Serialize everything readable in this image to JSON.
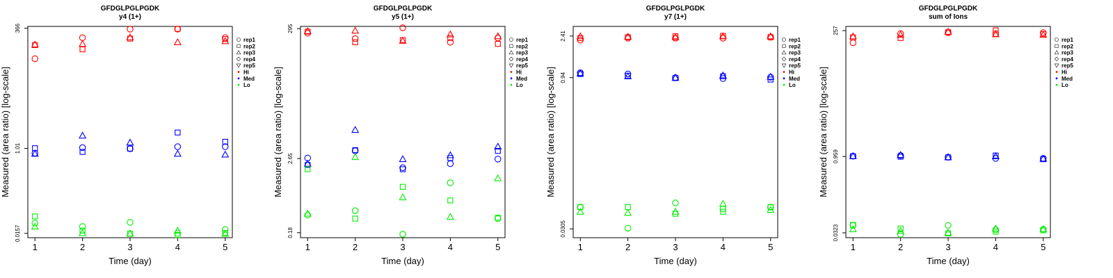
{
  "legend": {
    "reps": [
      {
        "label": "rep1",
        "marker": "circle"
      },
      {
        "label": "rep2",
        "marker": "square"
      },
      {
        "label": "rep3",
        "marker": "triangle-up"
      },
      {
        "label": "rep4",
        "marker": "diamond"
      },
      {
        "label": "rep5",
        "marker": "triangle-down"
      }
    ],
    "levels": [
      {
        "label": "Hi",
        "color": "#ff0000"
      },
      {
        "label": "Med",
        "color": "#0000ff"
      },
      {
        "label": "Lo",
        "color": "#00ee00"
      }
    ]
  },
  "chart_data": [
    {
      "type": "scatter",
      "title": "GFDGLPGLPGDK",
      "subtitle": "y4 (1+)",
      "xlabel": "Time (day)",
      "ylabel": "Measured (area ratio) [log-scale]",
      "x_ticks": [
        "1",
        "2",
        "3",
        "4",
        "5"
      ],
      "y_scale": "log",
      "y_ticks": [
        "0.0157",
        "1.01",
        "366"
      ],
      "ylim": [
        0.0127,
        400
      ],
      "series": [
        {
          "level": "Hi",
          "rep": "rep1",
          "values": [
            [
              1,
              82
            ],
            [
              2,
              230
            ],
            [
              3,
              350
            ],
            [
              4,
              350
            ],
            [
              5,
              230
            ]
          ]
        },
        {
          "level": "Hi",
          "rep": "rep2",
          "values": [
            [
              1,
              160
            ],
            [
              2,
              130
            ],
            [
              3,
              220
            ],
            [
              4,
              355
            ],
            [
              5,
              215
            ]
          ]
        },
        {
          "level": "Hi",
          "rep": "rep3",
          "values": [
            [
              1,
              165
            ],
            [
              2,
              170
            ],
            [
              3,
              235
            ],
            [
              4,
              185
            ],
            [
              5,
              195
            ]
          ]
        },
        {
          "level": "Med",
          "rep": "rep1",
          "values": [
            [
              1,
              0.8
            ],
            [
              2,
              1.05
            ],
            [
              3,
              1.0
            ],
            [
              4,
              1.1
            ],
            [
              5,
              1.1
            ]
          ]
        },
        {
          "level": "Med",
          "rep": "rep2",
          "values": [
            [
              1,
              1.02
            ],
            [
              2,
              0.85
            ],
            [
              3,
              1.0
            ],
            [
              4,
              2.2
            ],
            [
              5,
              1.4
            ]
          ]
        },
        {
          "level": "Med",
          "rep": "rep3",
          "values": [
            [
              1,
              0.78
            ],
            [
              2,
              1.9
            ],
            [
              3,
              1.35
            ],
            [
              4,
              0.78
            ],
            [
              5,
              0.75
            ]
          ]
        },
        {
          "level": "Lo",
          "rep": "rep1",
          "values": [
            [
              1,
              0.026
            ],
            [
              2,
              0.022
            ],
            [
              3,
              0.027
            ],
            [
              4,
              0.0157
            ],
            [
              5,
              0.019
            ]
          ]
        },
        {
          "level": "Lo",
          "rep": "rep2",
          "values": [
            [
              1,
              0.036
            ],
            [
              2,
              0.018
            ],
            [
              3,
              0.0155
            ],
            [
              4,
              0.0145
            ],
            [
              5,
              0.016
            ]
          ]
        },
        {
          "level": "Lo",
          "rep": "rep3",
          "values": [
            [
              1,
              0.022
            ],
            [
              2,
              0.016
            ],
            [
              3,
              0.0155
            ],
            [
              4,
              0.018
            ],
            [
              5,
              0.0155
            ]
          ]
        }
      ]
    },
    {
      "type": "scatter",
      "title": "GFDGLPGLPGDK",
      "subtitle": "y5 (1+)",
      "xlabel": "Time (day)",
      "ylabel": "Measured (area ratio) [log-scale]",
      "x_ticks": [
        "1",
        "2",
        "3",
        "4",
        "5"
      ],
      "y_scale": "log",
      "y_ticks": [
        "0.18",
        "2.65",
        "295"
      ],
      "ylim": [
        0.15,
        320
      ],
      "series": [
        {
          "level": "Hi",
          "rep": "rep1",
          "values": [
            [
              1,
              250
            ],
            [
              2,
              205
            ],
            [
              3,
              305
            ],
            [
              4,
              180
            ],
            [
              5,
              210
            ]
          ]
        },
        {
          "level": "Hi",
          "rep": "rep2",
          "values": [
            [
              1,
              265
            ],
            [
              2,
              180
            ],
            [
              3,
              195
            ],
            [
              4,
              210
            ],
            [
              5,
              170
            ]
          ]
        },
        {
          "level": "Hi",
          "rep": "rep3",
          "values": [
            [
              1,
              270
            ],
            [
              2,
              275
            ],
            [
              3,
              190
            ],
            [
              4,
              240
            ],
            [
              5,
              225
            ]
          ]
        },
        {
          "level": "Med",
          "rep": "rep1",
          "values": [
            [
              1,
              2.7
            ],
            [
              2,
              3.5
            ],
            [
              3,
              1.9
            ],
            [
              4,
              2.2
            ],
            [
              5,
              2.6
            ]
          ]
        },
        {
          "level": "Med",
          "rep": "rep2",
          "values": [
            [
              1,
              2.1
            ],
            [
              2,
              3.6
            ],
            [
              3,
              1.8
            ],
            [
              4,
              2.7
            ],
            [
              5,
              3.5
            ]
          ]
        },
        {
          "level": "Med",
          "rep": "rep3",
          "values": [
            [
              1,
              2.2
            ],
            [
              2,
              7.5
            ],
            [
              3,
              2.6
            ],
            [
              4,
              3.0
            ],
            [
              5,
              4.1
            ]
          ]
        },
        {
          "level": "Lo",
          "rep": "rep1",
          "values": [
            [
              1,
              0.34
            ],
            [
              2,
              0.4
            ],
            [
              3,
              0.17
            ],
            [
              4,
              1.1
            ],
            [
              5,
              0.3
            ]
          ]
        },
        {
          "level": "Lo",
          "rep": "rep2",
          "values": [
            [
              1,
              1.8
            ],
            [
              2,
              0.3
            ],
            [
              3,
              0.95
            ],
            [
              4,
              0.58
            ],
            [
              5,
              0.31
            ]
          ]
        },
        {
          "level": "Lo",
          "rep": "rep3",
          "values": [
            [
              1,
              0.36
            ],
            [
              2,
              2.8
            ],
            [
              3,
              0.65
            ],
            [
              4,
              0.32
            ],
            [
              5,
              1.3
            ]
          ]
        }
      ]
    },
    {
      "type": "scatter",
      "title": "GFDGLPGLPGDK",
      "subtitle": "y7 (1+)",
      "xlabel": "Time (day)",
      "ylabel": "Measured (area ratio) [log-scale]",
      "x_ticks": [
        "1",
        "2",
        "3",
        "4",
        "5"
      ],
      "y_scale": "log",
      "y_ticks": [
        "0.0305",
        "0.94",
        "2.41"
      ],
      "ylim": [
        0.025,
        3.0
      ],
      "series": [
        {
          "level": "Hi",
          "rep": "rep1",
          "values": [
            [
              1,
              2.2
            ],
            [
              2,
              2.3
            ],
            [
              3,
              2.3
            ],
            [
              4,
              2.3
            ],
            [
              5,
              2.35
            ]
          ]
        },
        {
          "level": "Hi",
          "rep": "rep2",
          "values": [
            [
              1,
              2.3
            ],
            [
              2,
              2.35
            ],
            [
              3,
              2.4
            ],
            [
              4,
              2.42
            ],
            [
              5,
              2.35
            ]
          ]
        },
        {
          "level": "Hi",
          "rep": "rep3",
          "values": [
            [
              1,
              2.4
            ],
            [
              2,
              2.38
            ],
            [
              3,
              2.35
            ],
            [
              4,
              2.4
            ],
            [
              5,
              2.4
            ]
          ]
        },
        {
          "level": "Med",
          "rep": "rep1",
          "values": [
            [
              1,
              1.05
            ],
            [
              2,
              1.02
            ],
            [
              3,
              0.94
            ],
            [
              4,
              0.92
            ],
            [
              5,
              0.95
            ]
          ]
        },
        {
          "level": "Med",
          "rep": "rep2",
          "values": [
            [
              1,
              1.02
            ],
            [
              2,
              0.98
            ],
            [
              3,
              0.93
            ],
            [
              4,
              0.97
            ],
            [
              5,
              0.9
            ]
          ]
        },
        {
          "level": "Med",
          "rep": "rep3",
          "values": [
            [
              1,
              1.04
            ],
            [
              2,
              0.97
            ],
            [
              3,
              0.94
            ],
            [
              4,
              0.99
            ],
            [
              5,
              0.96
            ]
          ]
        },
        {
          "level": "Lo",
          "rep": "rep1",
          "values": [
            [
              1,
              0.05
            ],
            [
              2,
              0.031
            ],
            [
              3,
              0.055
            ],
            [
              4,
              0.048
            ],
            [
              5,
              0.05
            ]
          ]
        },
        {
          "level": "Lo",
          "rep": "rep2",
          "values": [
            [
              1,
              0.05
            ],
            [
              2,
              0.05
            ],
            [
              3,
              0.043
            ],
            [
              4,
              0.045
            ],
            [
              5,
              0.05
            ]
          ]
        },
        {
          "level": "Lo",
          "rep": "rep3",
          "values": [
            [
              1,
              0.045
            ],
            [
              2,
              0.044
            ],
            [
              3,
              0.045
            ],
            [
              4,
              0.054
            ],
            [
              5,
              0.047
            ]
          ]
        }
      ]
    },
    {
      "type": "scatter",
      "title": "GFDGLPGLPGDK",
      "subtitle": "sum of Ions",
      "xlabel": "Time (day)",
      "ylabel": "Measured (area ratio) [log-scale]",
      "x_ticks": [
        "1",
        "2",
        "3",
        "4",
        "5"
      ],
      "y_scale": "log",
      "y_ticks": [
        "0.0323",
        "0.959",
        "257"
      ],
      "ylim": [
        0.026,
        310
      ],
      "series": [
        {
          "level": "Hi",
          "rep": "rep1",
          "values": [
            [
              1,
              150
            ],
            [
              2,
              225
            ],
            [
              3,
              235
            ],
            [
              4,
              225
            ],
            [
              5,
              235
            ]
          ]
        },
        {
          "level": "Hi",
          "rep": "rep2",
          "values": [
            [
              1,
              190
            ],
            [
              2,
              185
            ],
            [
              3,
              240
            ],
            [
              4,
              260
            ],
            [
              5,
              220
            ]
          ]
        },
        {
          "level": "Hi",
          "rep": "rep3",
          "values": [
            [
              1,
              200
            ],
            [
              2,
              215
            ],
            [
              3,
              245
            ],
            [
              4,
              220
            ],
            [
              5,
              215
            ]
          ]
        },
        {
          "level": "Med",
          "rep": "rep1",
          "values": [
            [
              1,
              0.97
            ],
            [
              2,
              1.0
            ],
            [
              3,
              0.93
            ],
            [
              4,
              0.88
            ],
            [
              5,
              0.88
            ]
          ]
        },
        {
          "level": "Med",
          "rep": "rep2",
          "values": [
            [
              1,
              0.97
            ],
            [
              2,
              0.95
            ],
            [
              3,
              0.92
            ],
            [
              4,
              1.0
            ],
            [
              5,
              0.85
            ]
          ]
        },
        {
          "level": "Med",
          "rep": "rep3",
          "values": [
            [
              1,
              0.98
            ],
            [
              2,
              1.03
            ],
            [
              3,
              0.93
            ],
            [
              4,
              0.97
            ],
            [
              5,
              0.87
            ]
          ]
        },
        {
          "level": "Lo",
          "rep": "rep1",
          "values": [
            [
              1,
              0.045
            ],
            [
              2,
              0.03
            ],
            [
              3,
              0.045
            ],
            [
              4,
              0.037
            ],
            [
              5,
              0.038
            ]
          ]
        },
        {
          "level": "Lo",
          "rep": "rep2",
          "values": [
            [
              1,
              0.046
            ],
            [
              2,
              0.039
            ],
            [
              3,
              0.0315
            ],
            [
              4,
              0.034
            ],
            [
              5,
              0.036
            ]
          ]
        },
        {
          "level": "Lo",
          "rep": "rep3",
          "values": [
            [
              1,
              0.038
            ],
            [
              2,
              0.035
            ],
            [
              3,
              0.0325
            ],
            [
              4,
              0.039
            ],
            [
              5,
              0.038
            ]
          ]
        }
      ]
    }
  ]
}
